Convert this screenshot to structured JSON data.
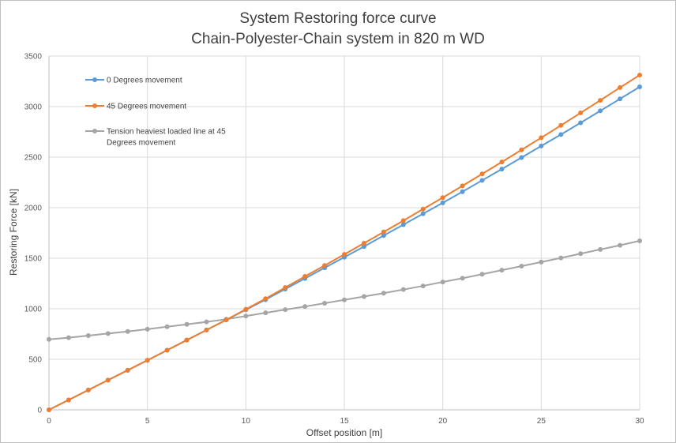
{
  "chart_data": {
    "type": "line",
    "title": "System Restoring force curve",
    "subtitle": "Chain-Polyester-Chain system in 820 m WD",
    "xlabel": "Offset position [m]",
    "ylabel": "Restoring Force [kN]",
    "xlim": [
      0,
      30
    ],
    "ylim": [
      0,
      3500
    ],
    "xticks": [
      0,
      5,
      10,
      15,
      20,
      25,
      30
    ],
    "yticks": [
      0,
      500,
      1000,
      1500,
      2000,
      2500,
      3000,
      3500
    ],
    "grid": true,
    "legend_position": "top-left",
    "x": [
      0,
      1,
      2,
      3,
      4,
      5,
      6,
      7,
      8,
      9,
      10,
      11,
      12,
      13,
      14,
      15,
      16,
      17,
      18,
      19,
      20,
      21,
      22,
      23,
      24,
      25,
      26,
      27,
      28,
      29,
      30
    ],
    "series": [
      {
        "name": "0 Degrees movement",
        "color": "#5b9bd5",
        "legend_lines": [
          "0 Degrees movement"
        ],
        "values": [
          0,
          98,
          196,
          294,
          392,
          490,
          590,
          690,
          790,
          890,
          990,
          1090,
          1195,
          1300,
          1405,
          1510,
          1615,
          1725,
          1832,
          1940,
          2048,
          2158,
          2270,
          2382,
          2496,
          2610,
          2724,
          2840,
          2958,
          3076,
          3195
        ]
      },
      {
        "name": "45 Degrees movement",
        "color": "#ed7d31",
        "legend_lines": [
          "45 Degrees movement"
        ],
        "values": [
          0,
          98,
          196,
          294,
          392,
          490,
          590,
          690,
          790,
          890,
          995,
          1100,
          1210,
          1320,
          1428,
          1538,
          1648,
          1760,
          1872,
          1986,
          2100,
          2216,
          2334,
          2452,
          2572,
          2692,
          2814,
          2938,
          3062,
          3188,
          3312
        ]
      },
      {
        "name": "Tension heaviest loaded line at 45 Degrees movement",
        "color": "#a5a5a5",
        "legend_lines": [
          "Tension heaviest loaded line at 45",
          "Degrees movement"
        ],
        "values": [
          697,
          714,
          734,
          755,
          775,
          798,
          822,
          846,
          870,
          896,
          928,
          960,
          991,
          1022,
          1055,
          1088,
          1121,
          1154,
          1190,
          1226,
          1265,
          1302,
          1342,
          1382,
          1422,
          1462,
          1503,
          1545,
          1587,
          1628,
          1672
        ]
      }
    ]
  }
}
